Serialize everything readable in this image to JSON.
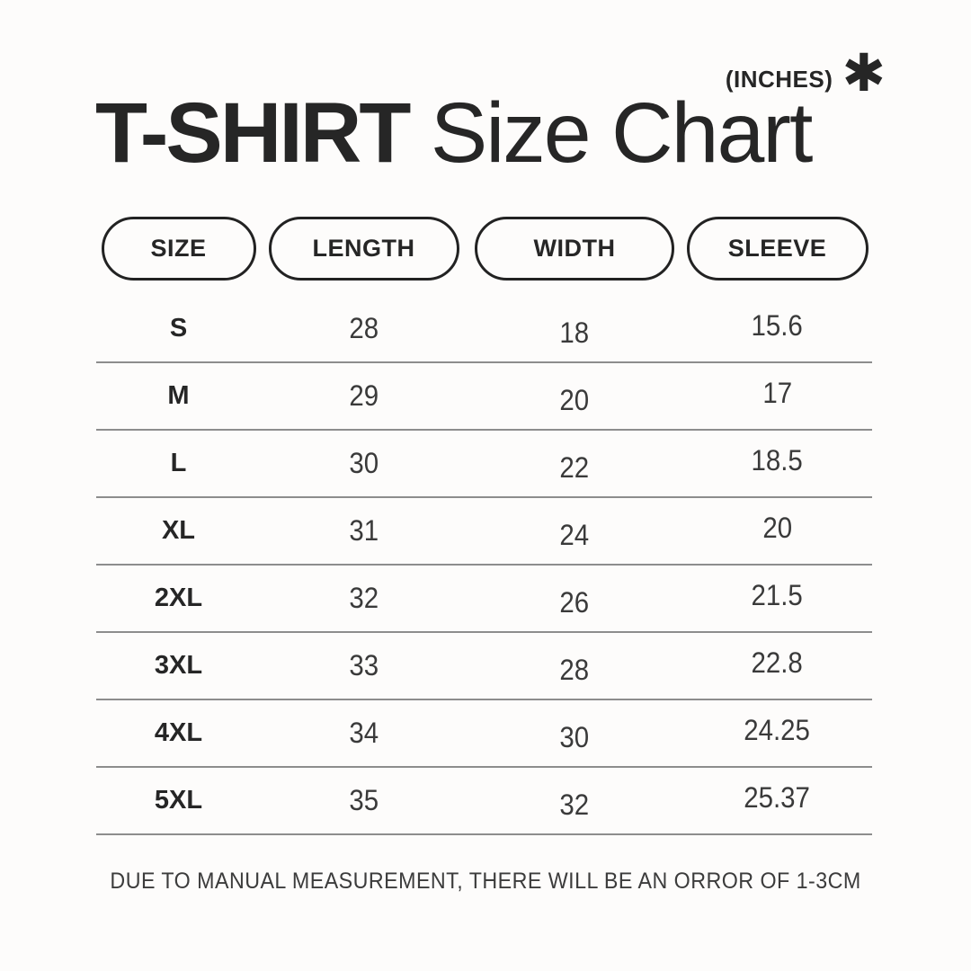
{
  "units_note": {
    "label": "(INCHES)",
    "asterisk_glyph": "✱"
  },
  "header": {
    "title_bold": "T-SHIRT",
    "title_regular": " Size Chart"
  },
  "chart_data": {
    "type": "table",
    "title": "T-SHIRT Size Chart",
    "units": "INCHES",
    "columns": [
      "SIZE",
      "LENGTH",
      "WIDTH",
      "SLEEVE"
    ],
    "rows": [
      [
        "S",
        28,
        18,
        15.6
      ],
      [
        "M",
        29,
        20,
        17
      ],
      [
        "L",
        30,
        22,
        18.5
      ],
      [
        "XL",
        31,
        24,
        20
      ],
      [
        "2XL",
        32,
        26,
        21.5
      ],
      [
        "3XL",
        33,
        28,
        22.8
      ],
      [
        "4XL",
        34,
        30,
        24.25
      ],
      [
        "5XL",
        35,
        32,
        25.37
      ]
    ],
    "footnote": "DUE TO MANUAL MEASUREMENT, THERE WILL BE AN ORROR OF 1-3CM"
  },
  "colors": {
    "bg": "#fdfcfb",
    "ink": "#262626",
    "num": "#3a3a3a",
    "divider": "#8d8d8d",
    "border": "#222222"
  }
}
